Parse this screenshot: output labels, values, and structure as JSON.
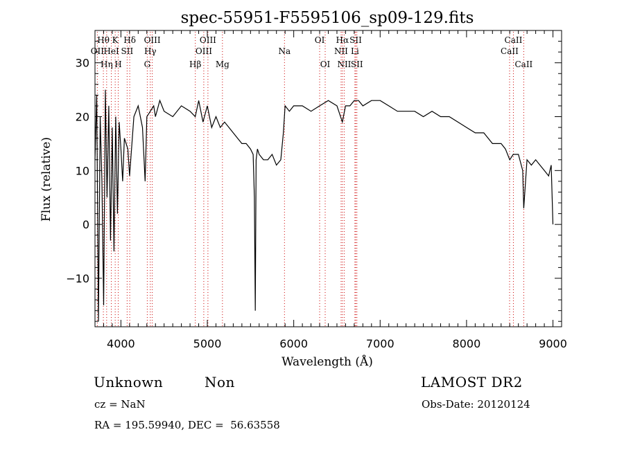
{
  "chart_data": {
    "type": "line",
    "title": "spec-55951-F5595106_sp09-129.fits",
    "xlabel": "Wavelength (Å)",
    "ylabel": "Flux (relative)",
    "xlim": [
      3700,
      9100
    ],
    "ylim": [
      -19,
      36
    ],
    "xticks": [
      4000,
      5000,
      6000,
      7000,
      8000,
      9000
    ],
    "yticks": [
      -10,
      0,
      10,
      20,
      30
    ],
    "grid": false,
    "legend": "none",
    "line_color": "#000000",
    "marker_color": "#cc0000",
    "series": [
      {
        "x": [
          3700,
          3720,
          3740,
          3760,
          3780,
          3800,
          3820,
          3840,
          3860,
          3880,
          3900,
          3920,
          3940,
          3960,
          3980,
          4000,
          4020,
          4040,
          4060,
          4080,
          4100,
          4150,
          4200,
          4250,
          4280,
          4300,
          4340,
          4380,
          4400,
          4450,
          4500,
          4600,
          4700,
          4800,
          4860,
          4900,
          4950,
          5000,
          5050,
          5100,
          5150,
          5200,
          5250,
          5300,
          5350,
          5400,
          5450,
          5500,
          5530,
          5545,
          5555,
          5565,
          5580,
          5600,
          5650,
          5700,
          5750,
          5800,
          5850,
          5880,
          5900,
          5950,
          6000,
          6100,
          6200,
          6300,
          6400,
          6500,
          6563,
          6600,
          6650,
          6700,
          6750,
          6800,
          6900,
          7000,
          7100,
          7200,
          7300,
          7400,
          7500,
          7600,
          7700,
          7800,
          7900,
          8000,
          8100,
          8200,
          8300,
          8400,
          8450,
          8500,
          8540,
          8600,
          8650,
          8662,
          8700,
          8750,
          8800,
          8850,
          8900,
          8950,
          8980,
          9000
        ],
        "y": [
          12,
          24,
          -18,
          20,
          8,
          -15,
          25,
          5,
          22,
          -3,
          18,
          -5,
          20,
          2,
          19,
          14,
          8,
          16,
          15,
          14,
          9,
          20,
          22,
          18,
          8,
          20,
          21,
          22,
          20,
          23,
          21,
          20,
          22,
          21,
          20,
          23,
          19,
          22,
          18,
          20,
          18,
          19,
          18,
          17,
          16,
          15,
          15,
          14,
          13,
          5,
          -16,
          12,
          14,
          13,
          12,
          12,
          13,
          11,
          12,
          17,
          22,
          21,
          22,
          22,
          21,
          22,
          23,
          22,
          19,
          22,
          22,
          23,
          23,
          22,
          23,
          23,
          22,
          21,
          21,
          21,
          20,
          21,
          20,
          20,
          19,
          18,
          17,
          17,
          15,
          15,
          14,
          12,
          13,
          13,
          10,
          3,
          12,
          11,
          12,
          11,
          10,
          9,
          11,
          0
        ]
      }
    ],
    "spectral_lines": [
      {
        "name": "Hθ",
        "x": 3797,
        "row": 1
      },
      {
        "name": "OII",
        "x": 3727,
        "row": 2
      },
      {
        "name": "Hη",
        "x": 3835,
        "row": 3
      },
      {
        "name": "K",
        "x": 3934,
        "row": 1
      },
      {
        "name": "HeI",
        "x": 3889,
        "row": 2
      },
      {
        "name": "SII",
        "x": 4072,
        "row": 2
      },
      {
        "name": "H",
        "x": 3969,
        "row": 3
      },
      {
        "name": "Hδ",
        "x": 4102,
        "row": 1
      },
      {
        "name": "OIII",
        "x": 4363,
        "row": 1
      },
      {
        "name": "Hγ",
        "x": 4340,
        "row": 2
      },
      {
        "name": "G",
        "x": 4305,
        "row": 3
      },
      {
        "name": "OIII",
        "x": 5007,
        "row": 1
      },
      {
        "name": "OIII",
        "x": 4959,
        "row": 2
      },
      {
        "name": "Hβ",
        "x": 4861,
        "row": 3
      },
      {
        "name": "Mg",
        "x": 5175,
        "row": 3
      },
      {
        "name": "Na",
        "x": 5893,
        "row": 2
      },
      {
        "name": "OI",
        "x": 6300,
        "row": 1
      },
      {
        "name": "OI",
        "x": 6364,
        "row": 3
      },
      {
        "name": "Hα",
        "x": 6563,
        "row": 1
      },
      {
        "name": "NII",
        "x": 6548,
        "row": 2
      },
      {
        "name": "NII",
        "x": 6584,
        "row": 3
      },
      {
        "name": "SII",
        "x": 6717,
        "row": 1
      },
      {
        "name": "Li",
        "x": 6708,
        "row": 2
      },
      {
        "name": "SII",
        "x": 6731,
        "row": 3
      },
      {
        "name": "CaII",
        "x": 8542,
        "row": 1
      },
      {
        "name": "CaII",
        "x": 8498,
        "row": 2
      },
      {
        "name": "CaII",
        "x": 8662,
        "row": 3
      }
    ]
  },
  "footer": {
    "classification": "Unknown",
    "subclass": "Non",
    "survey": "LAMOST DR2",
    "cz": "cz = NaN",
    "obs_date": "Obs-Date: 20120124",
    "coords": "RA = 195.59940, DEC =  56.63558"
  }
}
